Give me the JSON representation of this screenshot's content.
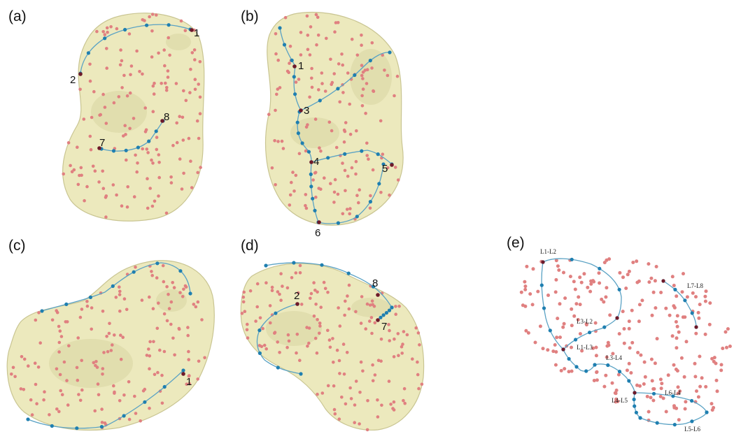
{
  "panels": [
    {
      "id": "a",
      "label": "(a)",
      "landmarks": [
        "1",
        "2",
        "8",
        "7"
      ]
    },
    {
      "id": "b",
      "label": "(b)",
      "landmarks": [
        "1",
        "3",
        "4",
        "5",
        "6"
      ]
    },
    {
      "id": "c",
      "label": "(c)",
      "landmarks": [
        "1"
      ]
    },
    {
      "id": "d",
      "label": "(d)",
      "landmarks": [
        "2",
        "8",
        "7"
      ]
    },
    {
      "id": "e",
      "label": "(e)",
      "curve_labels": [
        "L1-L2",
        "L7-L8",
        "L3-L2",
        "L1-L3",
        "L3-L4",
        "L6-L4",
        "L4-L5",
        "L5-L6"
      ]
    }
  ],
  "colors": {
    "bone": "#ece9bd",
    "semilandmark": "#e08080",
    "curve_point": "#1f7fb0",
    "landmark": "#6e1a2a",
    "curve_line": "#5aa2c4"
  }
}
